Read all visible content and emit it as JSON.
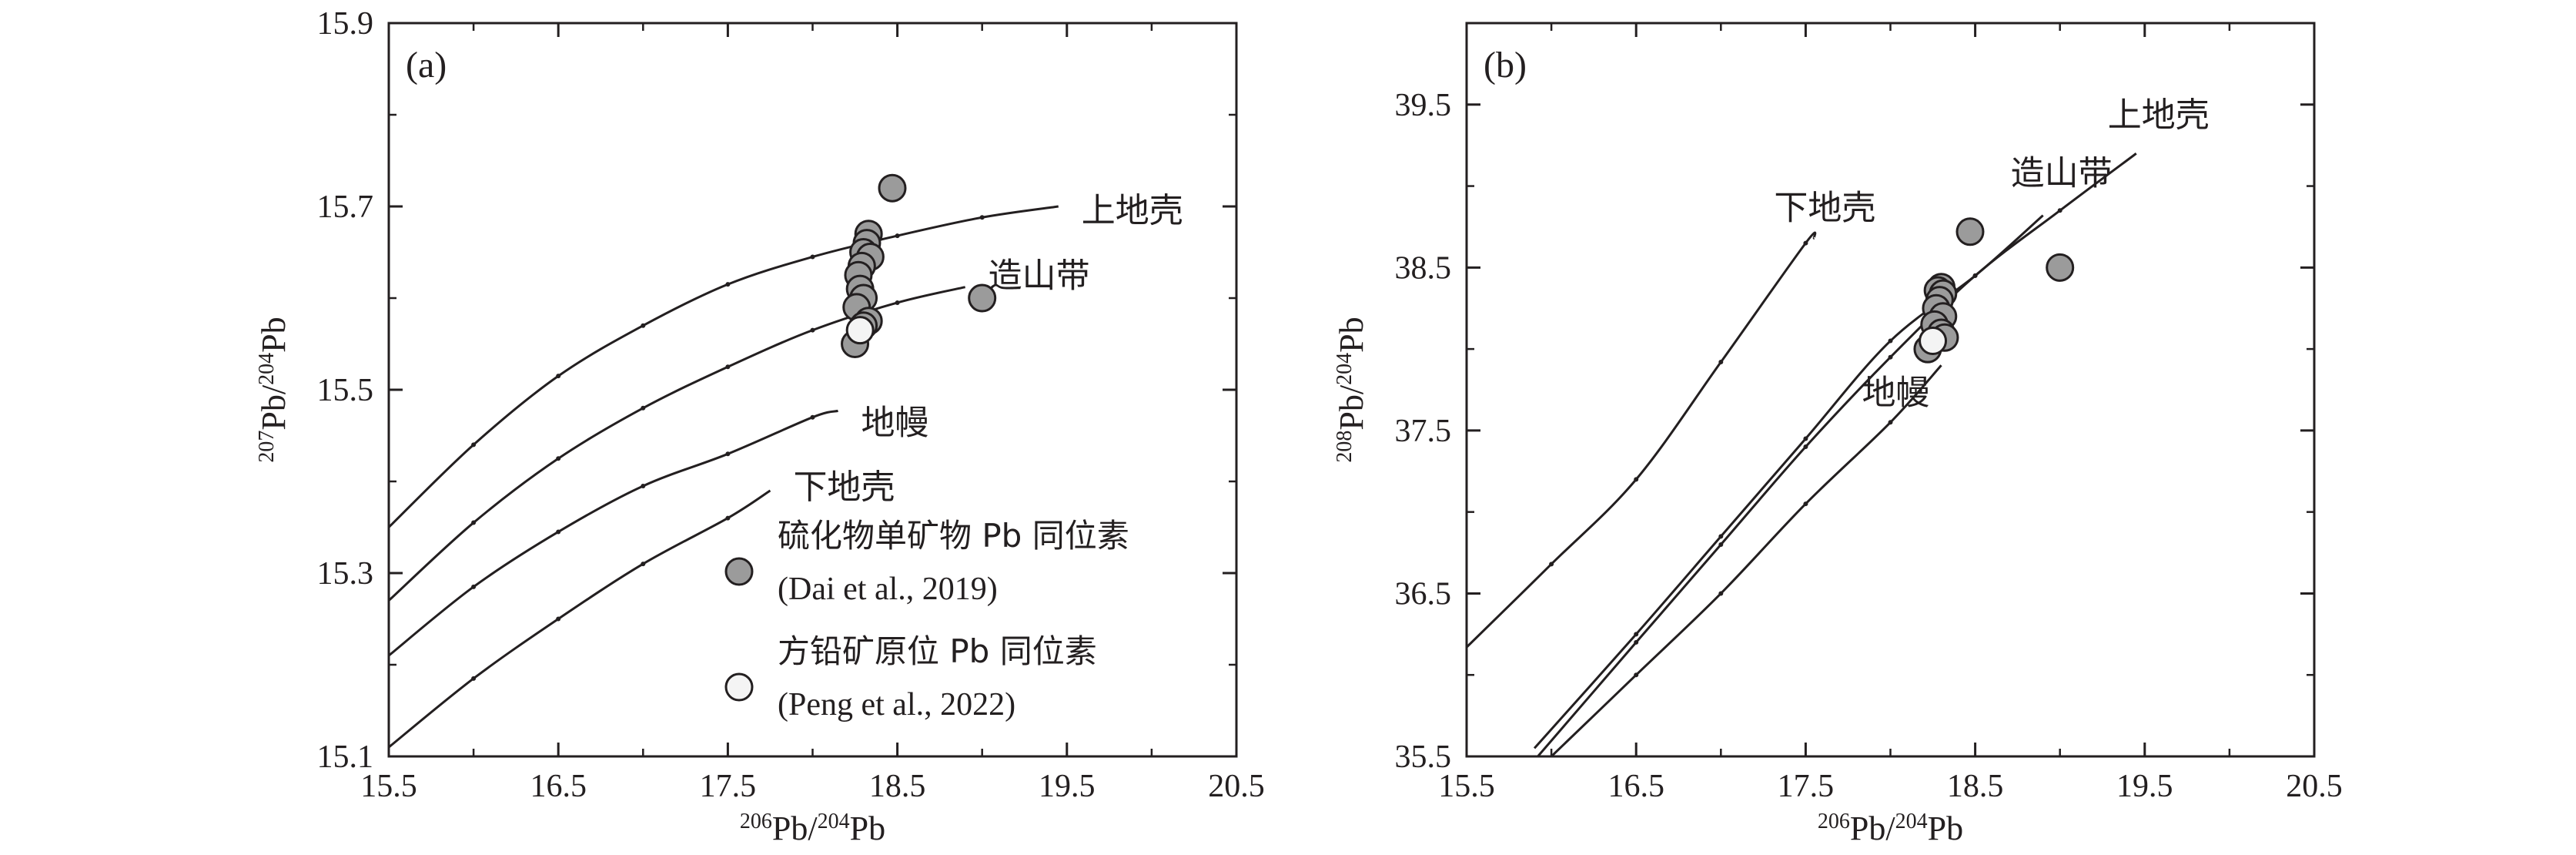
{
  "chart_data": [
    {
      "type": "scatter",
      "panel_label": "(a)",
      "xlabel": {
        "sup1": "206",
        "pre1": "Pb/",
        "sup2": "204",
        "post": "Pb"
      },
      "ylabel": {
        "sup1": "207",
        "pre1": "Pb/",
        "sup2": "204",
        "post": "Pb"
      },
      "xlim": [
        15.5,
        20.5
      ],
      "ylim": [
        15.1,
        15.9
      ],
      "x_ticks": [
        "15.5",
        "16.5",
        "17.5",
        "18.5",
        "19.5",
        "20.5"
      ],
      "y_ticks": [
        "15.1",
        "15.3",
        "15.5",
        "15.7",
        "15.9"
      ],
      "curves": [
        {
          "name": "上地壳",
          "points": [
            [
              15.5,
              15.35
            ],
            [
              16,
              15.44
            ],
            [
              16.5,
              15.515
            ],
            [
              17,
              15.57
            ],
            [
              17.5,
              15.615
            ],
            [
              18,
              15.645
            ],
            [
              18.5,
              15.668
            ],
            [
              19,
              15.688
            ],
            [
              19.45,
              15.7
            ]
          ]
        },
        {
          "name": "造山带",
          "points": [
            [
              15.5,
              15.27
            ],
            [
              16,
              15.355
            ],
            [
              16.5,
              15.425
            ],
            [
              17,
              15.48
            ],
            [
              17.5,
              15.525
            ],
            [
              18,
              15.565
            ],
            [
              18.5,
              15.595
            ],
            [
              18.9,
              15.612
            ]
          ]
        },
        {
          "name": "地幔",
          "points": [
            [
              15.5,
              15.21
            ],
            [
              16,
              15.285
            ],
            [
              16.5,
              15.345
            ],
            [
              17,
              15.395
            ],
            [
              17.5,
              15.43
            ],
            [
              18,
              15.47
            ],
            [
              18.15,
              15.477
            ]
          ]
        },
        {
          "name": "下地壳",
          "points": [
            [
              15.5,
              15.11
            ],
            [
              16,
              15.185
            ],
            [
              16.5,
              15.25
            ],
            [
              17,
              15.31
            ],
            [
              17.5,
              15.36
            ],
            [
              17.75,
              15.39
            ]
          ]
        }
      ],
      "series": [
        {
          "name": "硫化物单矿物 Pb 同位素",
          "citation": "(Dai et al., 2019)",
          "color": "#9b9b9b",
          "points": [
            [
              18.47,
              15.72
            ],
            [
              18.33,
              15.67
            ],
            [
              18.32,
              15.66
            ],
            [
              18.3,
              15.65
            ],
            [
              18.34,
              15.645
            ],
            [
              18.29,
              15.635
            ],
            [
              18.27,
              15.625
            ],
            [
              18.28,
              15.61
            ],
            [
              18.3,
              15.6
            ],
            [
              18.26,
              15.59
            ],
            [
              18.33,
              15.575
            ],
            [
              18.3,
              15.57
            ],
            [
              18.25,
              15.55
            ],
            [
              19,
              15.6
            ]
          ]
        },
        {
          "name": "方铅矿原位 Pb 同位素",
          "citation": "(Peng et al., 2022)",
          "color": "#f4f4f4",
          "points": [
            [
              18.28,
              15.565
            ]
          ]
        }
      ]
    },
    {
      "type": "scatter",
      "panel_label": "(b)",
      "xlabel": {
        "sup1": "206",
        "pre1": "Pb/",
        "sup2": "204",
        "post": "Pb"
      },
      "ylabel": {
        "sup1": "208",
        "pre1": "Pb/",
        "sup2": "204",
        "post": "Pb"
      },
      "xlim": [
        15.5,
        20.5
      ],
      "ylim": [
        35.5,
        40.0
      ],
      "x_ticks": [
        "15.5",
        "16.5",
        "17.5",
        "18.5",
        "19.5",
        "20.5"
      ],
      "y_ticks": [
        "35.5",
        "36.5",
        "37.5",
        "38.5",
        "39.5"
      ],
      "curves": [
        {
          "name": "下地壳",
          "points": [
            [
              15.5,
              36.17
            ],
            [
              16,
              36.68
            ],
            [
              16.5,
              37.2
            ],
            [
              17,
              37.92
            ],
            [
              17.5,
              38.65
            ],
            [
              17.55,
              38.68
            ]
          ]
        },
        {
          "name": "造山带",
          "points": [
            [
              15.9,
              35.55
            ],
            [
              16.5,
              36.25
            ],
            [
              17,
              36.85
            ],
            [
              17.5,
              37.45
            ],
            [
              18,
              38.05
            ],
            [
              18.5,
              38.45
            ],
            [
              18.9,
              38.82
            ]
          ]
        },
        {
          "name": "上地壳",
          "points": [
            [
              15.92,
              35.5
            ],
            [
              16.5,
              36.2
            ],
            [
              17,
              36.8
            ],
            [
              17.5,
              37.4
            ],
            [
              18,
              37.95
            ],
            [
              18.5,
              38.45
            ],
            [
              19,
              38.85
            ],
            [
              19.45,
              39.2
            ]
          ]
        },
        {
          "name": "地幔",
          "points": [
            [
              16,
              35.5
            ],
            [
              16.5,
              36.0
            ],
            [
              17,
              36.5
            ],
            [
              17.5,
              37.05
            ],
            [
              18,
              37.55
            ],
            [
              18.3,
              37.9
            ]
          ]
        }
      ],
      "series": [
        {
          "name": "硫化物单矿物 Pb 同位素",
          "citation": "(Dai et al., 2019)",
          "color": "#9b9b9b",
          "points": [
            [
              18.47,
              38.72
            ],
            [
              18.3,
              38.38
            ],
            [
              18.28,
              38.36
            ],
            [
              18.31,
              38.34
            ],
            [
              18.29,
              38.3
            ],
            [
              18.27,
              38.25
            ],
            [
              18.31,
              38.2
            ],
            [
              18.26,
              38.15
            ],
            [
              18.3,
              38.1
            ],
            [
              18.32,
              38.07
            ],
            [
              18.22,
              38.0
            ],
            [
              19,
              38.5
            ]
          ]
        },
        {
          "name": "方铅矿原位 Pb 同位素",
          "citation": "(Peng et al., 2022)",
          "color": "#f4f4f4",
          "points": [
            [
              18.25,
              38.05
            ]
          ]
        }
      ]
    }
  ]
}
